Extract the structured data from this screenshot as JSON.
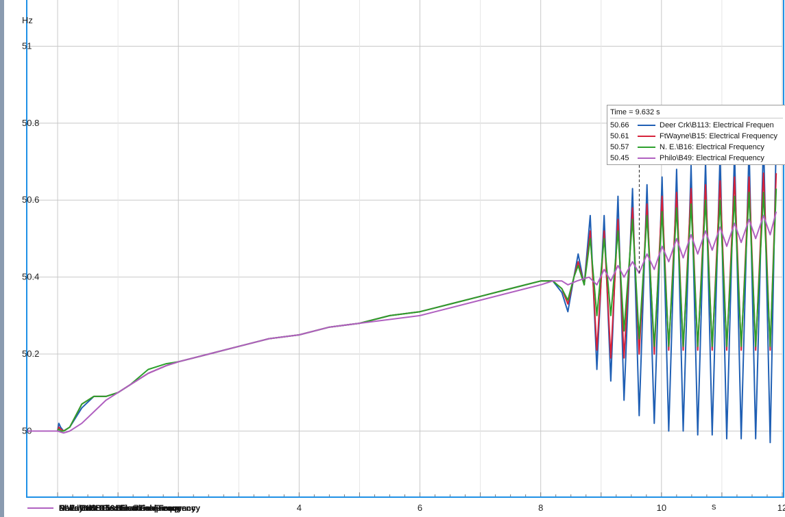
{
  "chart_data": {
    "type": "line",
    "xlabel": "s",
    "ylabel": "Hz",
    "xlim": [
      -0.5,
      12
    ],
    "ylim": [
      49.83,
      51.12
    ],
    "x_ticks": [
      {
        "value": 4,
        "label": "4"
      },
      {
        "value": 6,
        "label": "6"
      },
      {
        "value": 8,
        "label": "8"
      },
      {
        "value": 10,
        "label": "10"
      },
      {
        "value": 12,
        "label": "12"
      }
    ],
    "y_ticks": [
      {
        "value": 50.0,
        "label": "50"
      },
      {
        "value": 50.2,
        "label": "50.2"
      },
      {
        "value": 50.4,
        "label": "50.4"
      },
      {
        "value": 50.6,
        "label": "50.6"
      },
      {
        "value": 50.8,
        "label": "50.8"
      },
      {
        "value": 51.0,
        "label": "51"
      }
    ],
    "grid": true,
    "cursor_time": 9.632,
    "tooltip_title": "Time = 9.632 s",
    "series": [
      {
        "name": "Deer Crk\\B113: Electrical Frequen",
        "legend_label": "Deer Crk\\B113: Electrical Frequency",
        "tooltip_value": "50.66",
        "color": "#1f5fb4",
        "points": [
          [
            -0.5,
            50.0
          ],
          [
            0.0,
            50.0
          ],
          [
            0.02,
            50.02
          ],
          [
            0.05,
            50.01
          ],
          [
            0.1,
            50.0
          ],
          [
            0.2,
            50.01
          ],
          [
            0.4,
            50.06
          ],
          [
            0.6,
            50.09
          ],
          [
            0.8,
            50.09
          ],
          [
            1.0,
            50.1
          ],
          [
            1.2,
            50.12
          ],
          [
            1.5,
            50.15
          ],
          [
            1.8,
            50.17
          ],
          [
            2.0,
            50.18
          ],
          [
            2.5,
            50.2
          ],
          [
            3.0,
            50.22
          ],
          [
            3.5,
            50.24
          ],
          [
            4.0,
            50.25
          ],
          [
            4.5,
            50.27
          ],
          [
            5.0,
            50.28
          ],
          [
            5.5,
            50.3
          ],
          [
            6.0,
            50.31
          ],
          [
            6.5,
            50.33
          ],
          [
            7.0,
            50.35
          ],
          [
            7.5,
            50.37
          ],
          [
            8.0,
            50.39
          ],
          [
            8.2,
            50.39
          ],
          [
            8.35,
            50.36
          ],
          [
            8.45,
            50.31
          ],
          [
            8.55,
            50.4
          ],
          [
            8.62,
            50.46
          ],
          [
            8.72,
            50.38
          ],
          [
            8.82,
            50.56
          ],
          [
            8.93,
            50.16
          ],
          [
            9.05,
            50.56
          ],
          [
            9.16,
            50.13
          ],
          [
            9.28,
            50.61
          ],
          [
            9.38,
            50.08
          ],
          [
            9.52,
            50.63
          ],
          [
            9.63,
            50.04
          ],
          [
            9.76,
            50.64
          ],
          [
            9.88,
            50.02
          ],
          [
            10.01,
            50.66
          ],
          [
            10.12,
            50.0
          ],
          [
            10.25,
            50.68
          ],
          [
            10.36,
            50.0
          ],
          [
            10.49,
            50.69
          ],
          [
            10.6,
            49.99
          ],
          [
            10.73,
            50.7
          ],
          [
            10.84,
            49.99
          ],
          [
            10.97,
            50.72
          ],
          [
            11.08,
            49.98
          ],
          [
            11.21,
            50.73
          ],
          [
            11.32,
            49.98
          ],
          [
            11.45,
            50.74
          ],
          [
            11.56,
            49.98
          ],
          [
            11.69,
            50.76
          ],
          [
            11.8,
            49.97
          ],
          [
            11.9,
            50.76
          ]
        ]
      },
      {
        "name": "FtWayne\\B15: Electrical Frequency",
        "legend_label": "FtWayne\\B15: Electrical Frequency",
        "tooltip_value": "50.61",
        "color": "#d6223a",
        "points": [
          [
            -0.5,
            50.0
          ],
          [
            0.0,
            50.0
          ],
          [
            0.02,
            50.01
          ],
          [
            0.05,
            50.005
          ],
          [
            0.1,
            50.0
          ],
          [
            0.2,
            50.01
          ],
          [
            0.4,
            50.07
          ],
          [
            0.6,
            50.09
          ],
          [
            0.8,
            50.09
          ],
          [
            1.0,
            50.1
          ],
          [
            1.2,
            50.12
          ],
          [
            1.5,
            50.15
          ],
          [
            1.8,
            50.17
          ],
          [
            2.0,
            50.18
          ],
          [
            2.5,
            50.2
          ],
          [
            3.0,
            50.22
          ],
          [
            3.5,
            50.24
          ],
          [
            4.0,
            50.25
          ],
          [
            4.5,
            50.27
          ],
          [
            5.0,
            50.28
          ],
          [
            5.5,
            50.3
          ],
          [
            6.0,
            50.31
          ],
          [
            6.5,
            50.33
          ],
          [
            7.0,
            50.35
          ],
          [
            7.5,
            50.37
          ],
          [
            8.0,
            50.39
          ],
          [
            8.2,
            50.39
          ],
          [
            8.35,
            50.37
          ],
          [
            8.45,
            50.33
          ],
          [
            8.55,
            50.4
          ],
          [
            8.62,
            50.44
          ],
          [
            8.72,
            50.38
          ],
          [
            8.82,
            50.52
          ],
          [
            8.93,
            50.21
          ],
          [
            9.05,
            50.52
          ],
          [
            9.16,
            50.19
          ],
          [
            9.28,
            50.55
          ],
          [
            9.38,
            50.19
          ],
          [
            9.52,
            50.58
          ],
          [
            9.63,
            50.2
          ],
          [
            9.76,
            50.59
          ],
          [
            9.88,
            50.2
          ],
          [
            10.01,
            50.61
          ],
          [
            10.12,
            50.21
          ],
          [
            10.25,
            50.62
          ],
          [
            10.36,
            50.21
          ],
          [
            10.49,
            50.63
          ],
          [
            10.6,
            50.21
          ],
          [
            10.73,
            50.64
          ],
          [
            10.84,
            50.21
          ],
          [
            10.97,
            50.65
          ],
          [
            11.08,
            50.21
          ],
          [
            11.21,
            50.66
          ],
          [
            11.32,
            50.21
          ],
          [
            11.45,
            50.66
          ],
          [
            11.56,
            50.21
          ],
          [
            11.69,
            50.67
          ],
          [
            11.8,
            50.21
          ],
          [
            11.9,
            50.67
          ]
        ]
      },
      {
        "name": "N. E.\\B16: Electrical Frequency",
        "legend_label": "N. E.\\B16: Electrical Frequency",
        "tooltip_value": "50.57",
        "color": "#2ca02c",
        "points": [
          [
            -0.5,
            50.0
          ],
          [
            0.0,
            50.0
          ],
          [
            0.02,
            50.005
          ],
          [
            0.05,
            50.0
          ],
          [
            0.1,
            50.0
          ],
          [
            0.2,
            50.01
          ],
          [
            0.4,
            50.07
          ],
          [
            0.6,
            50.09
          ],
          [
            0.8,
            50.09
          ],
          [
            1.0,
            50.1
          ],
          [
            1.2,
            50.12
          ],
          [
            1.5,
            50.16
          ],
          [
            1.8,
            50.175
          ],
          [
            2.0,
            50.18
          ],
          [
            2.5,
            50.2
          ],
          [
            3.0,
            50.22
          ],
          [
            3.5,
            50.24
          ],
          [
            4.0,
            50.25
          ],
          [
            4.5,
            50.27
          ],
          [
            5.0,
            50.28
          ],
          [
            5.5,
            50.3
          ],
          [
            6.0,
            50.31
          ],
          [
            6.5,
            50.33
          ],
          [
            7.0,
            50.35
          ],
          [
            7.5,
            50.37
          ],
          [
            8.0,
            50.39
          ],
          [
            8.2,
            50.39
          ],
          [
            8.35,
            50.37
          ],
          [
            8.45,
            50.34
          ],
          [
            8.55,
            50.4
          ],
          [
            8.62,
            50.43
          ],
          [
            8.72,
            50.38
          ],
          [
            8.82,
            50.5
          ],
          [
            8.93,
            50.3
          ],
          [
            9.05,
            50.5
          ],
          [
            9.16,
            50.3
          ],
          [
            9.28,
            50.52
          ],
          [
            9.38,
            50.26
          ],
          [
            9.52,
            50.55
          ],
          [
            9.63,
            50.24
          ],
          [
            9.76,
            50.56
          ],
          [
            9.88,
            50.22
          ],
          [
            10.01,
            50.57
          ],
          [
            10.12,
            50.22
          ],
          [
            10.25,
            50.58
          ],
          [
            10.36,
            50.22
          ],
          [
            10.49,
            50.59
          ],
          [
            10.6,
            50.22
          ],
          [
            10.73,
            50.6
          ],
          [
            10.84,
            50.22
          ],
          [
            10.97,
            50.6
          ],
          [
            11.08,
            50.22
          ],
          [
            11.21,
            50.61
          ],
          [
            11.32,
            50.22
          ],
          [
            11.45,
            50.62
          ],
          [
            11.56,
            50.22
          ],
          [
            11.69,
            50.62
          ],
          [
            11.8,
            50.22
          ],
          [
            11.9,
            50.63
          ]
        ]
      },
      {
        "name": "Philo\\B49: Electrical Frequency",
        "legend_label": "Philo\\B49: Electrical Frequency",
        "tooltip_value": "50.45",
        "color": "#b060c0",
        "points": [
          [
            -0.5,
            50.0
          ],
          [
            0.0,
            50.0
          ],
          [
            0.1,
            49.995
          ],
          [
            0.2,
            50.0
          ],
          [
            0.4,
            50.02
          ],
          [
            0.6,
            50.05
          ],
          [
            0.8,
            50.08
          ],
          [
            1.0,
            50.1
          ],
          [
            1.2,
            50.12
          ],
          [
            1.5,
            50.15
          ],
          [
            1.8,
            50.17
          ],
          [
            2.0,
            50.18
          ],
          [
            2.5,
            50.2
          ],
          [
            3.0,
            50.22
          ],
          [
            3.5,
            50.24
          ],
          [
            4.0,
            50.25
          ],
          [
            4.5,
            50.27
          ],
          [
            5.0,
            50.28
          ],
          [
            5.5,
            50.29
          ],
          [
            6.0,
            50.3
          ],
          [
            6.5,
            50.32
          ],
          [
            7.0,
            50.34
          ],
          [
            7.5,
            50.36
          ],
          [
            8.0,
            50.38
          ],
          [
            8.2,
            50.39
          ],
          [
            8.35,
            50.39
          ],
          [
            8.45,
            50.38
          ],
          [
            8.6,
            50.39
          ],
          [
            8.8,
            50.4
          ],
          [
            8.93,
            50.38
          ],
          [
            9.05,
            50.42
          ],
          [
            9.16,
            50.39
          ],
          [
            9.28,
            50.43
          ],
          [
            9.38,
            50.4
          ],
          [
            9.52,
            50.44
          ],
          [
            9.63,
            50.41
          ],
          [
            9.76,
            50.46
          ],
          [
            9.88,
            50.42
          ],
          [
            10.01,
            50.48
          ],
          [
            10.12,
            50.44
          ],
          [
            10.25,
            50.5
          ],
          [
            10.36,
            50.45
          ],
          [
            10.49,
            50.51
          ],
          [
            10.6,
            50.46
          ],
          [
            10.73,
            50.52
          ],
          [
            10.84,
            50.47
          ],
          [
            10.97,
            50.53
          ],
          [
            11.08,
            50.48
          ],
          [
            11.21,
            50.54
          ],
          [
            11.32,
            50.49
          ],
          [
            11.45,
            50.55
          ],
          [
            11.56,
            50.5
          ],
          [
            11.69,
            50.56
          ],
          [
            11.8,
            50.51
          ],
          [
            11.9,
            50.57
          ]
        ]
      }
    ]
  }
}
